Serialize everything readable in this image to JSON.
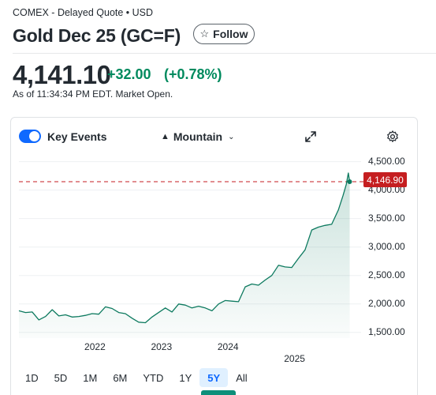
{
  "header": {
    "exchange_line": "COMEX - Delayed Quote • USD",
    "title": "Gold Dec 25 (GC=F)",
    "follow_label": "Follow"
  },
  "quote": {
    "price": "4,141.10",
    "change": "+32.00",
    "change_pct": "(+0.78%)",
    "as_of": "As of 11:34:34 PM EDT. Market Open."
  },
  "chart_controls": {
    "key_events_label": "Key Events",
    "key_events_on": true,
    "chart_type_label": "Mountain",
    "expand_icon": "expand-icon",
    "settings_icon": "gear-icon"
  },
  "last_price_tag": "4,146.90",
  "ranges": [
    {
      "label": "1D",
      "active": false
    },
    {
      "label": "5D",
      "active": false
    },
    {
      "label": "1M",
      "active": false
    },
    {
      "label": "6M",
      "active": false
    },
    {
      "label": "YTD",
      "active": false
    },
    {
      "label": "1Y",
      "active": false
    },
    {
      "label": "5Y",
      "active": true
    },
    {
      "label": "All",
      "active": false
    }
  ],
  "colors": {
    "up_green": "#008a5e",
    "line": "#0d7a5f",
    "tag_red": "#c51e20",
    "accent_blue": "#0f69ff"
  },
  "chart_data": {
    "type": "area",
    "title": "",
    "xlabel": "",
    "ylabel": "",
    "x_tick_labels": [
      "2022",
      "2023",
      "2024",
      "2025"
    ],
    "y_tick_labels": [
      "4,500.00",
      "4,000.00",
      "3,500.00",
      "3,000.00",
      "2,500.00",
      "2,000.00",
      "1,500.00"
    ],
    "y_ticks": [
      4500,
      4000,
      3500,
      3000,
      2500,
      2000,
      1500
    ],
    "ylim": [
      1400,
      4550
    ],
    "xlim": [
      2020.85,
      2025.85
    ],
    "reference_line": 4146.9,
    "grid": "horizontal",
    "series": [
      {
        "values_x": [
          2020.85,
          2020.95,
          2021.05,
          2021.15,
          2021.25,
          2021.35,
          2021.45,
          2021.55,
          2021.65,
          2021.75,
          2021.85,
          2021.95,
          2022.05,
          2022.15,
          2022.25,
          2022.35,
          2022.45,
          2022.55,
          2022.65,
          2022.75,
          2022.85,
          2022.95,
          2023.05,
          2023.15,
          2023.25,
          2023.35,
          2023.45,
          2023.55,
          2023.65,
          2023.75,
          2023.85,
          2023.95,
          2024.05,
          2024.15,
          2024.25,
          2024.35,
          2024.45,
          2024.55,
          2024.65,
          2024.75,
          2024.85,
          2024.95,
          2025.05,
          2025.15,
          2025.25,
          2025.35,
          2025.45,
          2025.55,
          2025.65,
          2025.72,
          2025.77,
          2025.8,
          2025.82
        ],
        "values_y": [
          1880,
          1850,
          1860,
          1720,
          1780,
          1900,
          1790,
          1810,
          1770,
          1780,
          1800,
          1830,
          1820,
          1950,
          1920,
          1850,
          1830,
          1750,
          1680,
          1670,
          1770,
          1850,
          1930,
          1860,
          2000,
          1980,
          1930,
          1960,
          1930,
          1880,
          2000,
          2060,
          2050,
          2040,
          2300,
          2350,
          2330,
          2420,
          2500,
          2680,
          2650,
          2640,
          2800,
          2950,
          3300,
          3350,
          3380,
          3400,
          3650,
          3900,
          4100,
          4300,
          4146.9
        ]
      }
    ]
  }
}
